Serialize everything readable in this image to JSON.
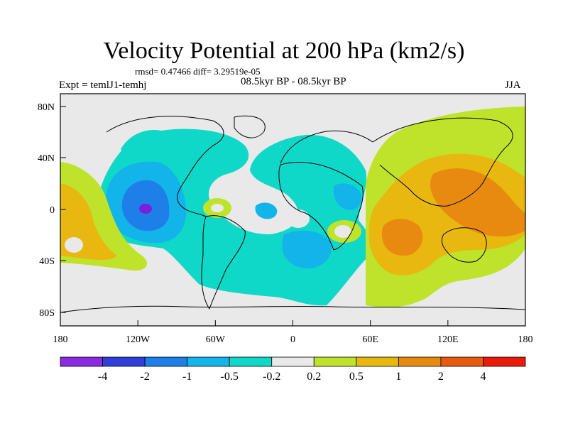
{
  "title": "Velocity Potential at 200 hPa (km2/s)",
  "stats": "rmsd= 0.47466 diff= 3.29519e-05",
  "expt_label": "Expt = temlJ1-temhj",
  "period": "08.5kyr BP - 08.5kyr BP",
  "season": "JJA",
  "lat_ticks": [
    "80N",
    "40N",
    "0",
    "40S",
    "80S"
  ],
  "lon_ticks": [
    "180",
    "120W",
    "60W",
    "0",
    "60E",
    "120E",
    "180"
  ],
  "colorbar": {
    "labels": [
      "-4",
      "-2",
      "-1",
      "-0.5",
      "-0.2",
      "0.2",
      "0.5",
      "1",
      "2",
      "4"
    ],
    "colors": [
      "#8a2be2",
      "#2f3fd8",
      "#1e7fe8",
      "#12b4ea",
      "#10d8c8",
      "#e9e9e9",
      "#bfe32a",
      "#e8b810",
      "#e88a10",
      "#e85a10",
      "#e81b0b"
    ]
  },
  "colors": {
    "neutral": "#e9e9e9",
    "neg_02": "#10d8c8",
    "neg_05": "#12b4ea",
    "neg_1": "#1e7fe8",
    "neg_2": "#2f3fd8",
    "neg_4": "#7b1fd8",
    "pos_02": "#bfe32a",
    "pos_05": "#e8b810",
    "pos_1": "#e88a10",
    "pos_2": "#e85a10"
  },
  "chart_data": {
    "type": "heatmap",
    "title": "Velocity Potential at 200 hPa (km2/s)",
    "variable": "200 hPa velocity potential anomaly",
    "contour_levels": [
      -4,
      -2,
      -1,
      -0.5,
      -0.2,
      0.2,
      0.5,
      1,
      2,
      4
    ],
    "lon_range": [
      -180,
      180
    ],
    "lat_range": [
      -90,
      90
    ]
  }
}
